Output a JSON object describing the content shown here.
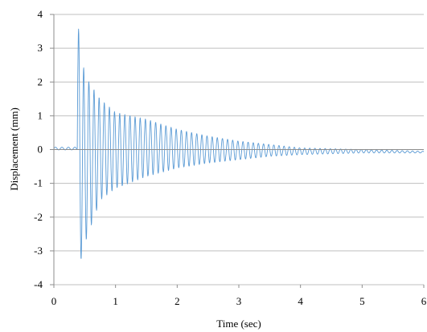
{
  "chart_data": {
    "type": "line",
    "title": "",
    "xlabel": "Time (sec)",
    "ylabel": "Displacement (mm)",
    "xlim": [
      0,
      6
    ],
    "ylim": [
      -4,
      4
    ],
    "x_ticks": [
      "0",
      "1",
      "2",
      "3",
      "4",
      "5",
      "6"
    ],
    "y_ticks": [
      "4",
      "3",
      "2",
      "1",
      "0",
      "-1",
      "-2",
      "-3",
      "-4"
    ],
    "grid": "horizontal",
    "legend": "none",
    "series": [
      {
        "color": "#5b9bd5",
        "description": "damped free vibration after impulse near t=0.38 s",
        "pre_impulse_level": 0.03,
        "impulse_time": 0.38,
        "oscillation_frequency_hz": 12,
        "envelope": [
          {
            "t": 0.38,
            "max": 3.85,
            "min": -3.75
          },
          {
            "t": 0.5,
            "max": 2.2,
            "min": -2.8
          },
          {
            "t": 0.75,
            "max": 1.5,
            "min": -1.5
          },
          {
            "t": 1.0,
            "max": 1.1,
            "min": -1.15
          },
          {
            "t": 1.5,
            "max": 0.9,
            "min": -0.8
          },
          {
            "t": 2.0,
            "max": 0.6,
            "min": -0.55
          },
          {
            "t": 2.5,
            "max": 0.4,
            "min": -0.4
          },
          {
            "t": 3.0,
            "max": 0.25,
            "min": -0.3
          },
          {
            "t": 3.5,
            "max": 0.15,
            "min": -0.2
          },
          {
            "t": 4.0,
            "max": 0.05,
            "min": -0.15
          },
          {
            "t": 5.0,
            "max": 0.0,
            "min": -0.1
          },
          {
            "t": 6.0,
            "max": -0.05,
            "min": -0.1
          }
        ]
      }
    ]
  }
}
